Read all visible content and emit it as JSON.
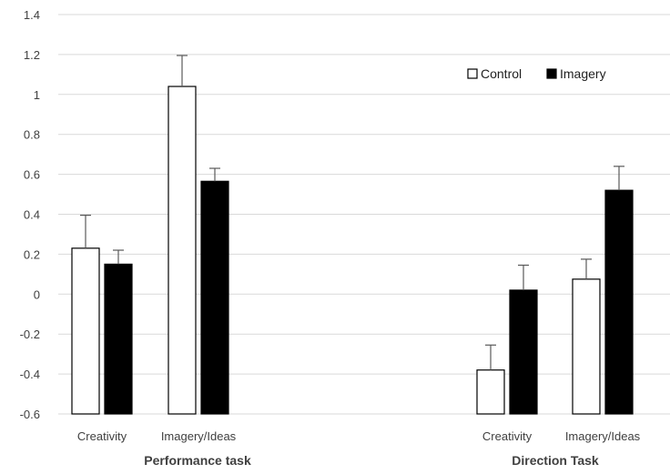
{
  "chart_data": {
    "type": "bar",
    "title": "",
    "xlabel": "",
    "ylabel": "",
    "ylim": [
      -0.6,
      1.4
    ],
    "yticks": [
      "1.4",
      "1.2",
      "1",
      "0.8",
      "0.6",
      "0.4",
      "0.2",
      "0",
      "-0.2",
      "-0.4",
      "-0.6"
    ],
    "grid": true,
    "legend_position": "top-right",
    "groups": [
      {
        "label": "Performance task",
        "categories": [
          "Creativity",
          "Imagery/Ideas"
        ]
      },
      {
        "label": "Direction  Task",
        "categories": [
          "Creativity",
          "Imagery/Ideas"
        ]
      }
    ],
    "categories": [
      "Creativity",
      "Imagery/Ideas",
      "Creativity",
      "Imagery/Ideas"
    ],
    "series": [
      {
        "name": "Control",
        "color": "#ffffff",
        "stroke": "#000000",
        "values": [
          0.23,
          1.04,
          -0.38,
          0.075
        ],
        "errors": [
          0.165,
          0.155,
          0.125,
          0.1
        ]
      },
      {
        "name": "Imagery",
        "color": "#000000",
        "stroke": "#000000",
        "values": [
          0.15,
          0.565,
          0.02,
          0.52
        ],
        "errors": [
          0.07,
          0.065,
          0.125,
          0.12
        ]
      }
    ]
  }
}
